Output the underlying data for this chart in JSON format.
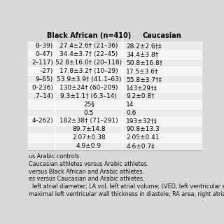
{
  "title_col1": "Black African (n=410)",
  "title_col2": "Caucasian",
  "left_partial": [
    "8–39)",
    "0–47)",
    "2–117)",
    "–27)",
    "9–65)",
    "0–236)",
    ".7–14)",
    "",
    "",
    "4–262)",
    "",
    "",
    ""
  ],
  "col1_values": [
    "27.4±2.6† (21–36)",
    "34.4±3.7† (22–45)",
    "52.8±16.0† (20–118)",
    "17.8±3.2† (10–29)",
    "53.9±3.9† (41.1–63)",
    "130±24† (60–209)",
    "9.3±1.1† (6.3–14)",
    "25§",
    "0.5",
    "182±38† (71–291)",
    "89.7±14.8",
    "2.07±0.38",
    "4.9±0.9"
  ],
  "col2_values": [
    "28.2±2.6†‡",
    "34.4±3.8†",
    "50.8±16.8†",
    "17.5±3.6†",
    "55.8±3.7†‡",
    "143±29†‡",
    "9.2±0.8†",
    "14",
    "0.6",
    "193±32†‡",
    "90.8±13.3",
    "2.05±0.41",
    "4.6±0.7‡"
  ],
  "footnote_lines": [
    "us Arabic controls.",
    "Caucasian athletes versus Arabic athletes.",
    "versus Black African and Arabic athletes.",
    "es versus Caucasian and Arabic athletes.",
    ". left atrial diameter; LA vol, left atrial volume; LVED, left ventricular end diasto",
    "maximal left ventricular wall thickness in diastole; RA area, right atrial area."
  ],
  "table_bg": "#f0f0f0",
  "page_bg": "#d8d8d8",
  "header_bg": "#d8d8d8",
  "divider_color": "#ffffff",
  "font_size": 6.5,
  "header_font_size": 7.0,
  "footnote_font_size": 5.8
}
